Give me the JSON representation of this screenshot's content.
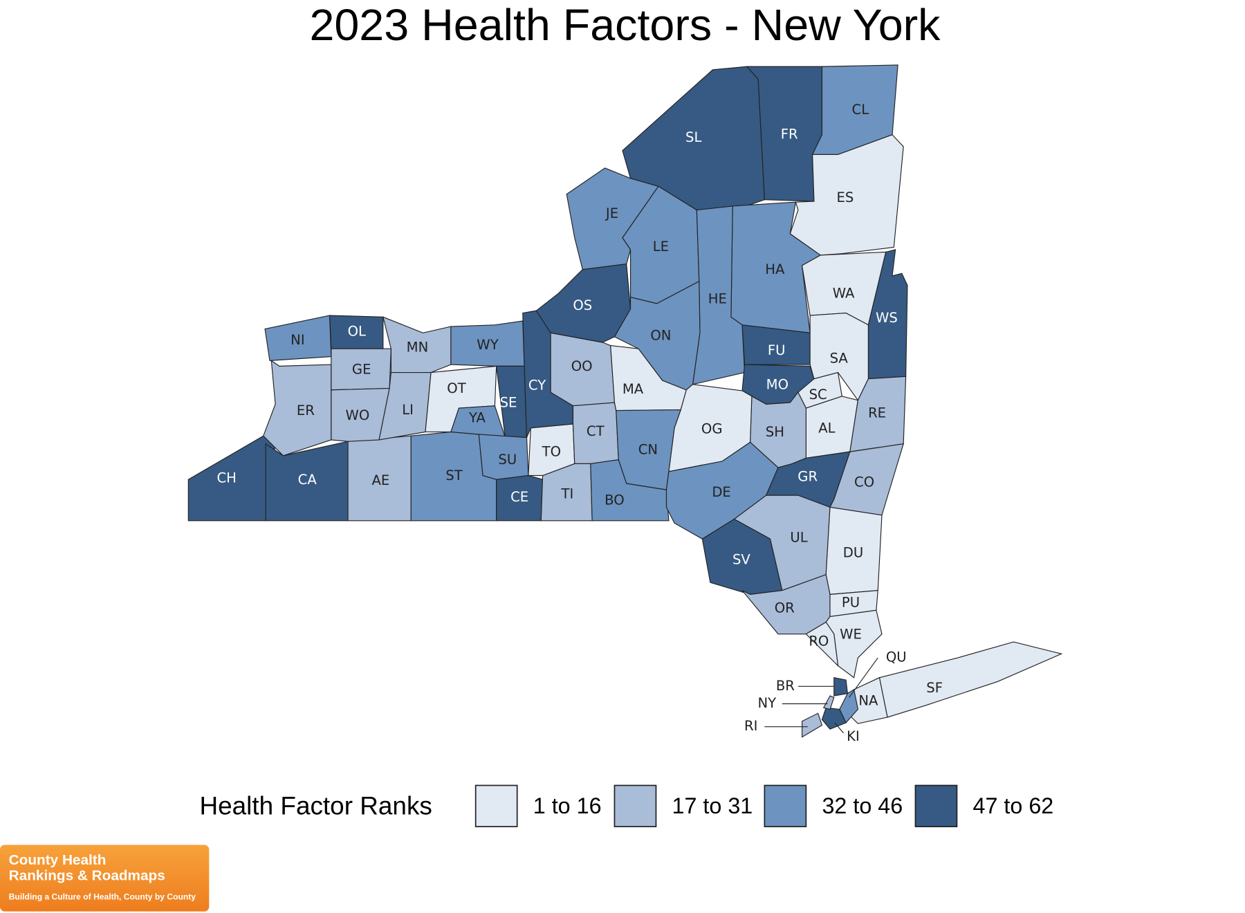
{
  "title": "2023 Health Factors - New York",
  "counties": [
    {
      "label": "CH",
      "color": "#365a83"
    },
    {
      "label": "CA",
      "color": "#365a83"
    },
    {
      "label": "AE",
      "color": "#a9bcd8"
    },
    {
      "label": "ST",
      "color": "#6d93c0"
    },
    {
      "label": "CE",
      "color": "#365a83"
    },
    {
      "label": "TI",
      "color": "#a9bcd8"
    },
    {
      "label": "BO",
      "color": "#6d93c0"
    },
    {
      "label": "ER",
      "color": "#a9bcd8"
    },
    {
      "label": "NI",
      "color": "#6d93c0"
    },
    {
      "label": "OL",
      "color": "#365a83"
    },
    {
      "label": "GE",
      "color": "#a9bcd8"
    },
    {
      "label": "WO",
      "color": "#a9bcd8"
    },
    {
      "label": "MN",
      "color": "#a9bcd8"
    },
    {
      "label": "LI",
      "color": "#a9bcd8"
    },
    {
      "label": "OT",
      "color": "#e1e9f3"
    },
    {
      "label": "WY",
      "color": "#6d93c0"
    },
    {
      "label": "YA",
      "color": "#6d93c0"
    },
    {
      "label": "SE",
      "color": "#365a83"
    },
    {
      "label": "SU",
      "color": "#6d93c0"
    },
    {
      "label": "CY",
      "color": "#365a83"
    },
    {
      "label": "TO",
      "color": "#e1e9f3"
    },
    {
      "label": "OO",
      "color": "#a9bcd8"
    },
    {
      "label": "CT",
      "color": "#a9bcd8"
    },
    {
      "label": "MA",
      "color": "#e1e9f3"
    },
    {
      "label": "OS",
      "color": "#365a83"
    },
    {
      "label": "JE",
      "color": "#6d93c0"
    },
    {
      "label": "LE",
      "color": "#6d93c0"
    },
    {
      "label": "SL",
      "color": "#365a83"
    },
    {
      "label": "FR",
      "color": "#365a83"
    },
    {
      "label": "CL",
      "color": "#6d93c0"
    },
    {
      "label": "ES",
      "color": "#e1e9f3"
    },
    {
      "label": "HA",
      "color": "#6d93c0"
    },
    {
      "label": "HE",
      "color": "#6d93c0"
    },
    {
      "label": "ON",
      "color": "#6d93c0"
    },
    {
      "label": "FU",
      "color": "#365a83"
    },
    {
      "label": "MO",
      "color": "#365a83"
    },
    {
      "label": "WA",
      "color": "#e1e9f3"
    },
    {
      "label": "WS",
      "color": "#365a83"
    },
    {
      "label": "SA",
      "color": "#e1e9f3"
    },
    {
      "label": "SC",
      "color": "#e1e9f3"
    },
    {
      "label": "AL",
      "color": "#e1e9f3"
    },
    {
      "label": "RE",
      "color": "#a9bcd8"
    },
    {
      "label": "SH",
      "color": "#a9bcd8"
    },
    {
      "label": "OG",
      "color": "#e1e9f3"
    },
    {
      "label": "CN",
      "color": "#6d93c0"
    },
    {
      "label": "DE",
      "color": "#6d93c0"
    },
    {
      "label": "GR",
      "color": "#365a83"
    },
    {
      "label": "CO",
      "color": "#a9bcd8"
    },
    {
      "label": "UL",
      "color": "#a9bcd8"
    },
    {
      "label": "SV",
      "color": "#365a83"
    },
    {
      "label": "DU",
      "color": "#e1e9f3"
    },
    {
      "label": "OR",
      "color": "#a9bcd8"
    },
    {
      "label": "PU",
      "color": "#e1e9f3"
    },
    {
      "label": "WE",
      "color": "#e1e9f3"
    },
    {
      "label": "RO",
      "color": "#e1e9f3"
    },
    {
      "label": "NA",
      "color": "#e1e9f3"
    },
    {
      "label": "SF",
      "color": "#e1e9f3"
    },
    {
      "label": "BR",
      "color": "#365a83"
    },
    {
      "label": "QU",
      "color": "#6d93c0"
    },
    {
      "label": "KI",
      "color": "#365a83"
    },
    {
      "label": "NY",
      "color": "#a9bcd8"
    },
    {
      "label": "RI",
      "color": "#a9bcd8"
    }
  ],
  "legend": {
    "title": "Health Factor Ranks",
    "items": [
      {
        "label": "1 to 16",
        "color": "#e1e9f3"
      },
      {
        "label": "17 to 31",
        "color": "#a9bcd8"
      },
      {
        "label": "32 to 46",
        "color": "#6d93c0"
      },
      {
        "label": "47 to 62",
        "color": "#365a83"
      }
    ]
  },
  "logo": {
    "line1": "County Health",
    "line2": "Rankings & Roadmaps",
    "tagline": "Building a Culture of Health, County by County"
  }
}
